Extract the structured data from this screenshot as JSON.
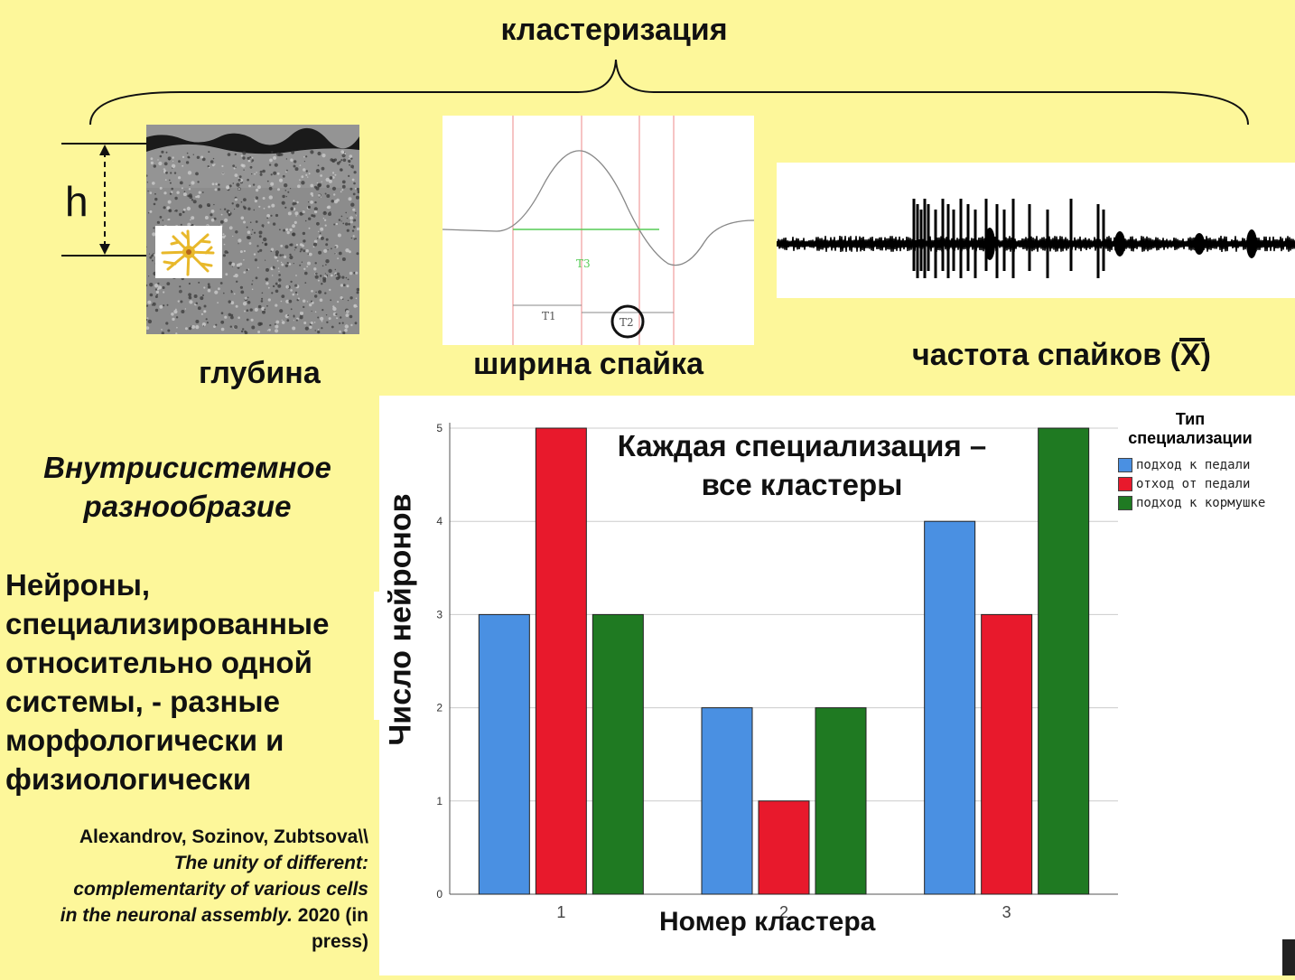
{
  "header": {
    "title": "кластеризация"
  },
  "panels": {
    "depth": {
      "caption": "глубина",
      "h_label": "h"
    },
    "spike_width": {
      "caption": "ширина спайка",
      "labels": [
        "T3",
        "T1",
        "T2"
      ]
    },
    "frequency": {
      "caption": "частота спайков (X)"
    }
  },
  "left_text": {
    "diversity": [
      "Внутрисистемное",
      "разнообразие"
    ],
    "neurons": [
      "Нейроны,",
      "специализированные",
      "относительно одной",
      "системы, - разные",
      "морфологически и",
      "физиологически"
    ],
    "citation": {
      "authors": "Alexandrov, Sozinov, Zubtsova\\\\",
      "title_lines": [
        "The unity of different:",
        "complementarity of various cells",
        "in the neuronal assembly."
      ],
      "year": "2020 (in",
      "status": "press)"
    }
  },
  "colors": {
    "background": "#fdf79a",
    "blue": "#4a90e2",
    "red": "#e8192c",
    "green": "#1f7a22"
  },
  "chart_data": {
    "type": "bar",
    "annotation": [
      "Каждая специализация –",
      "все кластеры"
    ],
    "xlabel": "Номер кластера",
    "ylabel": "Число нейронов",
    "categories": [
      "1",
      "2",
      "3"
    ],
    "ylim": [
      0,
      5
    ],
    "yticks": [
      "0",
      "1",
      "2",
      "3",
      "4",
      "5"
    ],
    "grid": true,
    "legend": {
      "title": [
        "Тип",
        "специализации"
      ],
      "placement": "top-right"
    },
    "series": [
      {
        "name": "подход к педали",
        "color": "#4a90e2",
        "values": [
          3,
          2,
          4
        ]
      },
      {
        "name": "отход от педали",
        "color": "#e8192c",
        "values": [
          5,
          1,
          3
        ]
      },
      {
        "name": "подход к кормушке",
        "color": "#1f7a22",
        "values": [
          3,
          2,
          5
        ]
      }
    ]
  }
}
